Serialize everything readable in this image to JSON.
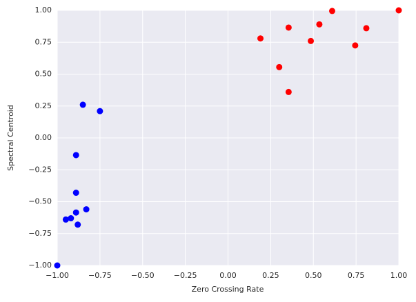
{
  "chart_data": {
    "type": "scatter",
    "xlabel": "Zero Crossing Rate",
    "ylabel": "Spectral Centroid",
    "xlim": [
      -1,
      1
    ],
    "ylim": [
      -1,
      1
    ],
    "xticks": [
      {
        "value": -1,
        "label": "−1.00"
      },
      {
        "value": -0.75,
        "label": "−0.75"
      },
      {
        "value": -0.5,
        "label": "−0.50"
      },
      {
        "value": -0.25,
        "label": "−0.25"
      },
      {
        "value": 0,
        "label": "0.00"
      },
      {
        "value": 0.25,
        "label": "0.25"
      },
      {
        "value": 0.5,
        "label": "0.50"
      },
      {
        "value": 0.75,
        "label": "0.75"
      },
      {
        "value": 1,
        "label": "1.00"
      }
    ],
    "yticks": [
      {
        "value": -1,
        "label": "−1.00"
      },
      {
        "value": -0.75,
        "label": "−0.75"
      },
      {
        "value": -0.5,
        "label": "−0.50"
      },
      {
        "value": -0.25,
        "label": "−0.25"
      },
      {
        "value": 0,
        "label": "0.00"
      },
      {
        "value": 0.25,
        "label": "0.25"
      },
      {
        "value": 0.5,
        "label": "0.50"
      },
      {
        "value": 0.75,
        "label": "0.75"
      },
      {
        "value": 1,
        "label": "1.00"
      }
    ],
    "grid": true,
    "series": [
      {
        "color": "#0000ff",
        "x": [
          -0.85,
          -0.75,
          -0.89,
          -0.89,
          -0.89,
          -0.83,
          -0.95,
          -0.92,
          -0.88,
          -1
        ],
        "y": [
          0.26,
          0.21,
          -0.135,
          -0.43,
          -0.585,
          -0.56,
          -0.64,
          -0.63,
          -0.68,
          -1
        ]
      },
      {
        "color": "#ff0000",
        "x": [
          0.19,
          0.355,
          0.3,
          0.355,
          0.485,
          0.535,
          0.61,
          0.745,
          0.81,
          1
        ],
        "y": [
          0.78,
          0.865,
          0.555,
          0.36,
          0.76,
          0.89,
          0.995,
          0.725,
          0.86,
          1
        ]
      }
    ]
  }
}
